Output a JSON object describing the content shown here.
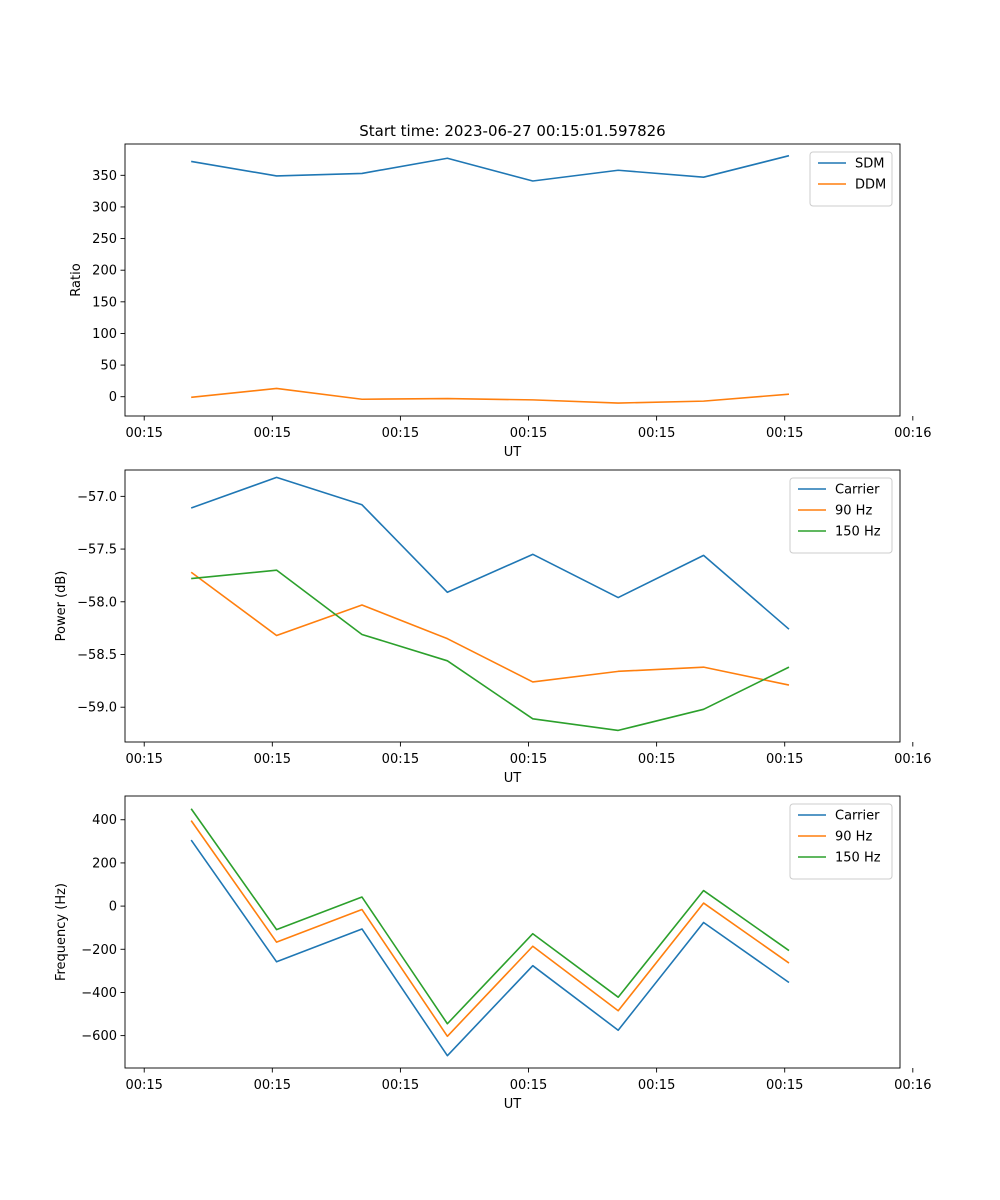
{
  "figure": {
    "title": "Start time: 2023-06-27 00:15:01.597826"
  },
  "chart_data": [
    {
      "type": "line",
      "xlabel": "UT",
      "ylabel": "Ratio",
      "x": [
        1,
        2,
        3,
        4,
        5,
        6,
        7,
        8
      ],
      "xlim": [
        0.225,
        9.3
      ],
      "xticks": [
        0.45,
        1.95,
        3.45,
        4.95,
        6.45,
        7.95,
        9.45
      ],
      "xtick_labels": [
        "00:15",
        "00:15",
        "00:15",
        "00:15",
        "00:15",
        "00:15",
        "00:16"
      ],
      "ylim": [
        -30.5,
        399.5
      ],
      "yticks": [
        0,
        50,
        100,
        150,
        200,
        250,
        300,
        350
      ],
      "ytick_labels": [
        "0",
        "50",
        "100",
        "150",
        "200",
        "250",
        "300",
        "350"
      ],
      "legend_position": "top-right",
      "series": [
        {
          "name": "SDM",
          "color": "#1f77b4",
          "values": [
            372,
            349,
            353,
            377,
            341,
            358,
            347,
            381
          ]
        },
        {
          "name": "DDM",
          "color": "#ff7f0e",
          "values": [
            -1,
            13,
            -4,
            -3,
            -5,
            -10,
            -7,
            4
          ]
        }
      ]
    },
    {
      "type": "line",
      "xlabel": "UT",
      "ylabel": "Power (dB)",
      "x": [
        1,
        2,
        3,
        4,
        5,
        6,
        7,
        8
      ],
      "xlim": [
        0.225,
        9.3
      ],
      "xticks": [
        0.45,
        1.95,
        3.45,
        4.95,
        6.45,
        7.95,
        9.45
      ],
      "xtick_labels": [
        "00:15",
        "00:15",
        "00:15",
        "00:15",
        "00:15",
        "00:15",
        "00:16"
      ],
      "ylim": [
        -59.33,
        -56.75
      ],
      "yticks": [
        -59.0,
        -58.5,
        -58.0,
        -57.5,
        -57.0
      ],
      "ytick_labels": [
        "−59.0",
        "−58.5",
        "−58.0",
        "−57.5",
        "−57.0"
      ],
      "legend_position": "top-right",
      "series": [
        {
          "name": "Carrier",
          "color": "#1f77b4",
          "values": [
            -57.11,
            -56.82,
            -57.08,
            -57.91,
            -57.55,
            -57.96,
            -57.56,
            -58.26
          ]
        },
        {
          "name": "90 Hz",
          "color": "#ff7f0e",
          "values": [
            -57.72,
            -58.32,
            -58.03,
            -58.35,
            -58.76,
            -58.66,
            -58.62,
            -58.79
          ]
        },
        {
          "name": "150 Hz",
          "color": "#2ca02c",
          "values": [
            -57.78,
            -57.7,
            -58.31,
            -58.56,
            -59.11,
            -59.22,
            -59.02,
            -58.62
          ]
        }
      ]
    },
    {
      "type": "line",
      "xlabel": "UT",
      "ylabel": "Frequency (Hz)",
      "x": [
        1,
        2,
        3,
        4,
        5,
        6,
        7,
        8
      ],
      "xlim": [
        0.225,
        9.3
      ],
      "xticks": [
        0.45,
        1.95,
        3.45,
        4.95,
        6.45,
        7.95,
        9.45
      ],
      "xtick_labels": [
        "00:15",
        "00:15",
        "00:15",
        "00:15",
        "00:15",
        "00:15",
        "00:16"
      ],
      "ylim": [
        -750,
        510
      ],
      "yticks": [
        -600,
        -400,
        -200,
        0,
        200,
        400
      ],
      "ytick_labels": [
        "−600",
        "−400",
        "−200",
        "0",
        "200",
        "400"
      ],
      "legend_position": "top-right",
      "series": [
        {
          "name": "Carrier",
          "color": "#1f77b4",
          "values": [
            306,
            -258,
            -106,
            -693,
            -276,
            -575,
            -76,
            -354
          ]
        },
        {
          "name": "90 Hz",
          "color": "#ff7f0e",
          "values": [
            396,
            -167,
            -16,
            -603,
            -186,
            -485,
            14,
            -264
          ]
        },
        {
          "name": "150 Hz",
          "color": "#2ca02c",
          "values": [
            451,
            -109,
            42,
            -545,
            -128,
            -422,
            72,
            -206
          ]
        }
      ]
    }
  ]
}
